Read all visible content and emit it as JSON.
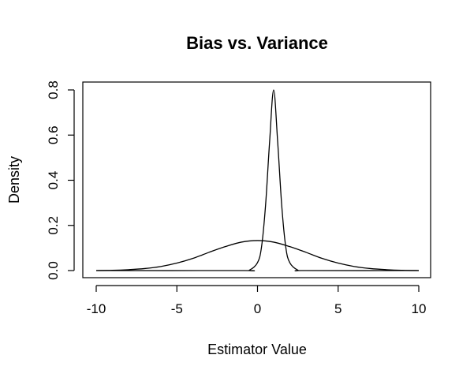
{
  "chart_data": {
    "type": "line",
    "title": "Bias vs. Variance",
    "xlabel": "Estimator Value",
    "ylabel": "Density",
    "xlim": [
      -10,
      10
    ],
    "ylim": [
      0,
      0.8
    ],
    "x_ticks": [
      -10,
      -5,
      0,
      5,
      10
    ],
    "x_tick_labels": [
      "-10",
      "-5",
      "0",
      "5",
      "10"
    ],
    "y_ticks": [
      0.0,
      0.2,
      0.4,
      0.6,
      0.8
    ],
    "y_tick_labels": [
      "0.0",
      "0.2",
      "0.4",
      "0.6",
      "0.8"
    ],
    "grid": false,
    "legend": "none",
    "color": "#000000",
    "series": [
      {
        "x": [
          -10,
          -9,
          -8,
          -7,
          -6,
          -5,
          -4,
          -3,
          -2,
          -1,
          0,
          1,
          2,
          3,
          4,
          5,
          6,
          7,
          8,
          9,
          10
        ],
        "y": [
          0.0,
          0.001,
          0.004,
          0.009,
          0.018,
          0.033,
          0.054,
          0.081,
          0.106,
          0.126,
          0.133,
          0.126,
          0.106,
          0.081,
          0.054,
          0.033,
          0.018,
          0.009,
          0.004,
          0.001,
          0.0
        ]
      },
      {
        "x": [
          -10,
          -1,
          -0.5,
          0,
          0.25,
          0.5,
          0.75,
          1,
          1.25,
          1.5,
          1.75,
          2,
          2.5,
          3,
          10
        ],
        "y": [
          0.0,
          0.0,
          0.002,
          0.035,
          0.105,
          0.29,
          0.57,
          0.8,
          0.57,
          0.29,
          0.105,
          0.035,
          0.002,
          0.0,
          0.0
        ]
      }
    ]
  }
}
